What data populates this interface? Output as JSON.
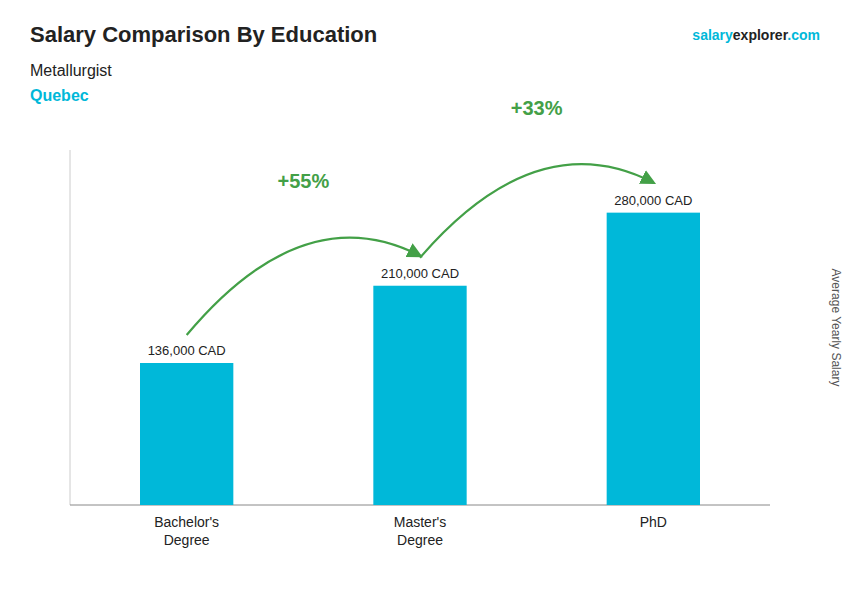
{
  "chart_data": {
    "type": "bar",
    "title": "Salary Comparison By Education",
    "subtitle": "Metallurgist",
    "ylabel": "Average Yearly Salary",
    "annotations": [
      "Quebec",
      "salary",
      "explorer",
      ".com",
      "+55%",
      "+33%"
    ],
    "categories": [
      "Bachelor's\nDegree",
      "Master's\nDegree",
      "PhD"
    ],
    "values": [
      136000,
      210000,
      280000
    ],
    "value_labels": [
      "136,000 CAD",
      "210,000 CAD",
      "280,000 CAD"
    ],
    "data_labels": true,
    "color": "#00b8d9",
    "ylim": [
      0,
      340000
    ],
    "grid": false,
    "tick_labels": "x"
  }
}
